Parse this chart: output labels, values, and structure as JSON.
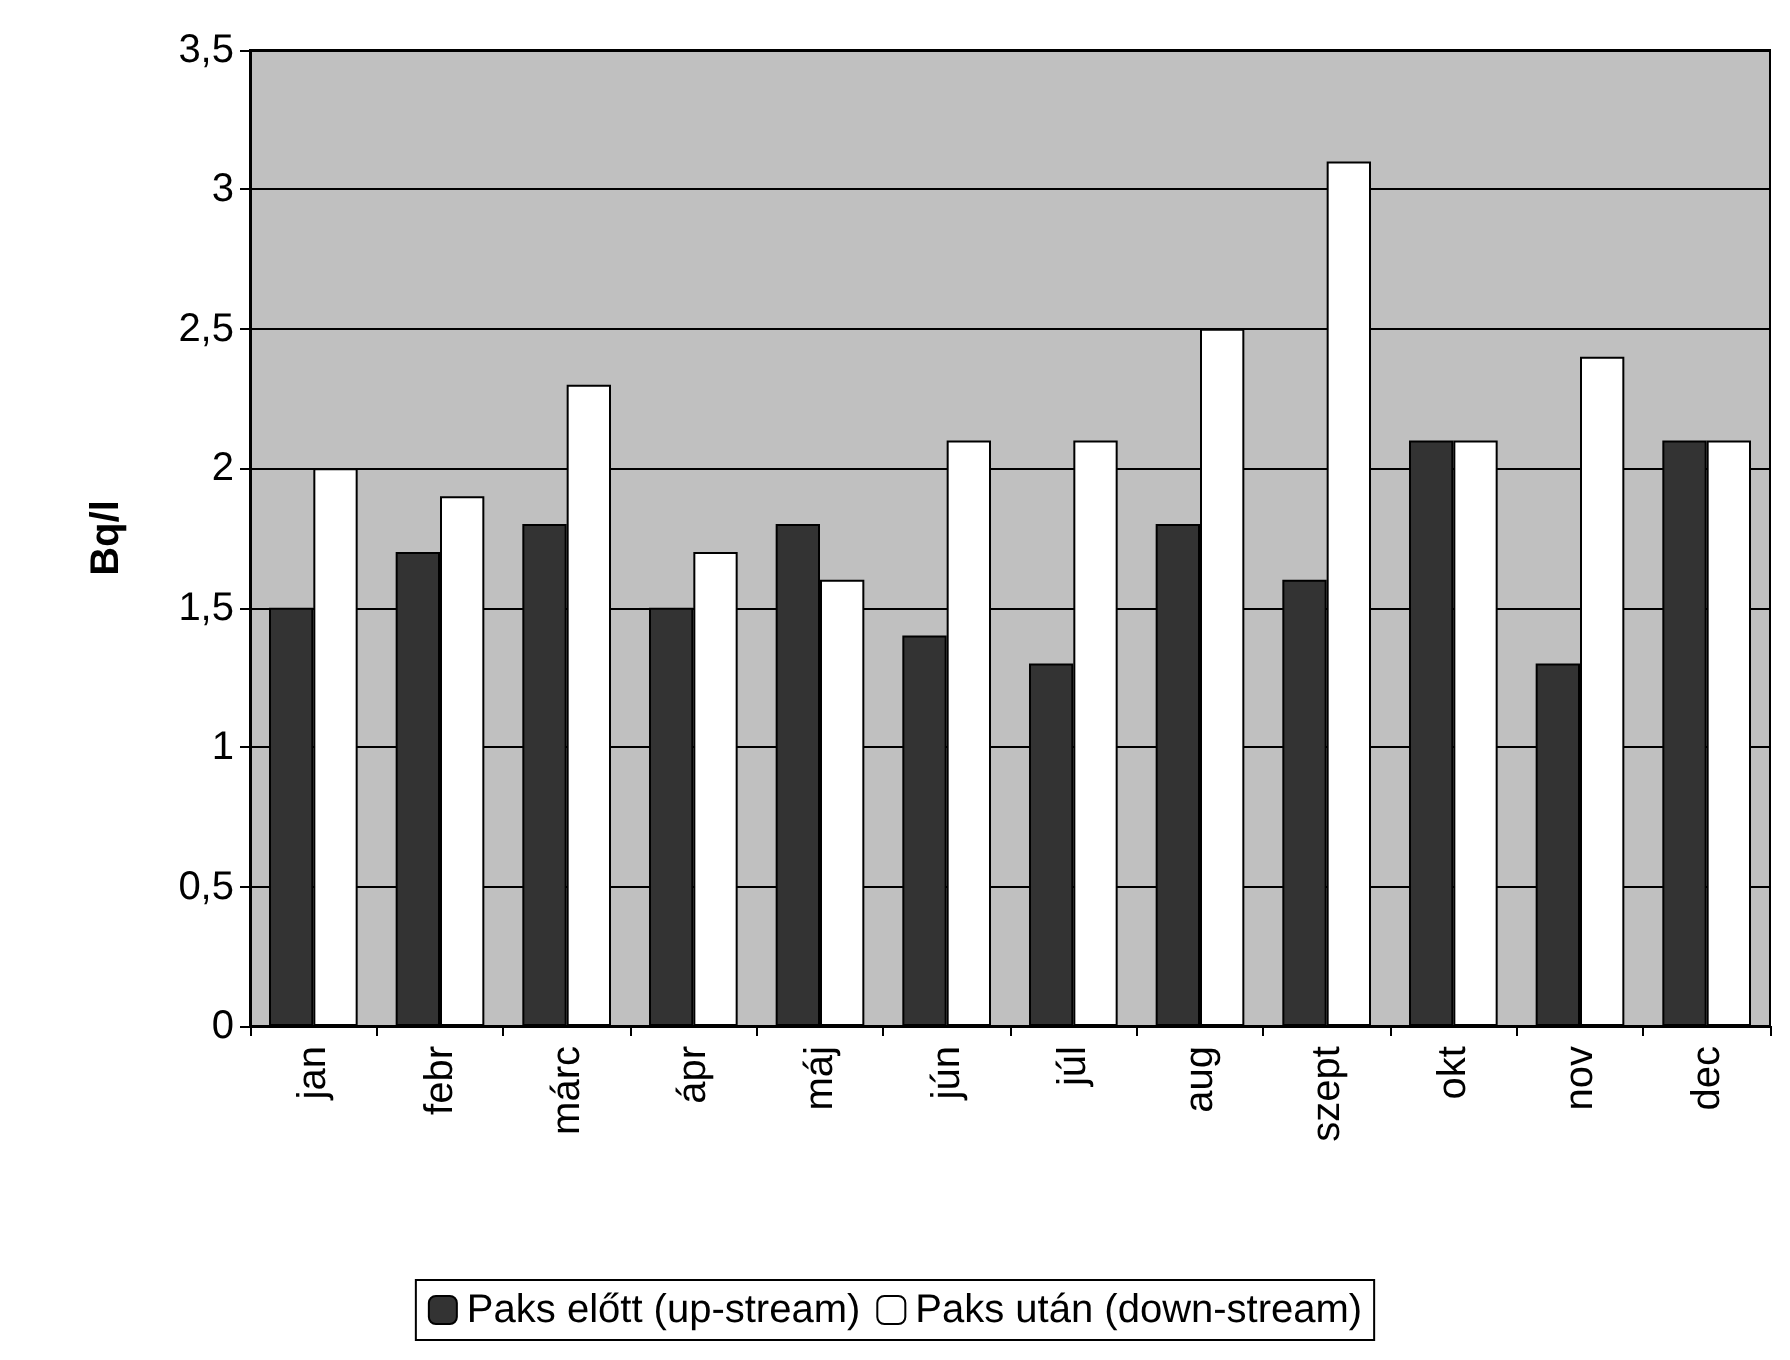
{
  "chart_data": {
    "type": "bar",
    "ylabel": "Bq/l",
    "categories": [
      "jan",
      "febr",
      "márc",
      "ápr",
      "máj",
      "jún",
      "júl",
      "aug",
      "szept",
      "okt",
      "nov",
      "dec"
    ],
    "series": [
      {
        "name": "Paks előtt (up-stream)",
        "color": "#333333",
        "values": [
          1.5,
          1.7,
          1.8,
          1.5,
          1.8,
          1.4,
          1.3,
          1.8,
          1.6,
          2.1,
          1.3,
          2.1
        ]
      },
      {
        "name": "Paks után (down-stream)",
        "color": "#ffffff",
        "values": [
          2.0,
          1.9,
          2.3,
          1.7,
          1.6,
          2.1,
          2.1,
          2.5,
          3.1,
          2.1,
          2.4,
          2.1
        ]
      }
    ],
    "ylim": [
      0,
      3.5
    ],
    "yticks": [
      0,
      {
        "value": 0.5,
        "label": "0,5"
      },
      1,
      {
        "value": 1.5,
        "label": "1,5"
      },
      2,
      {
        "value": 2.5,
        "label": "2,5"
      },
      3,
      {
        "value": 3.5,
        "label": "3,5"
      }
    ],
    "grid": "y",
    "legend": "bottom"
  }
}
